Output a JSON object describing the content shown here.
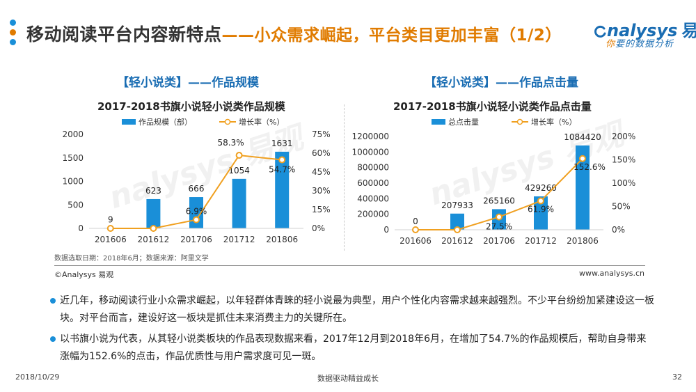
{
  "header": {
    "title_main": "移动阅读平台内容新特点",
    "title_sub": "——小众需求崛起，平台类目更加丰富（1/2）",
    "logo_brand": "nalysys",
    "logo_zh": "易观",
    "logo_tagline_hl": "你",
    "logo_tagline": "要的数据分析",
    "dot_colors": [
      "#1a8fd8",
      "#e07b00",
      "#1a8fd8"
    ]
  },
  "left": {
    "section_title": "【轻小说类】——作品规模",
    "chart_title": "2017-2018书旗小说轻小说类作品规模"
  },
  "right": {
    "section_title": "【轻小说类】——作品点击量",
    "chart_title": "2017-2018书旗小说轻小说类作品点击量"
  },
  "chart_data": [
    {
      "type": "bar",
      "title": "2017-2018书旗小说轻小说类作品规模",
      "categories": [
        "201606",
        "201612",
        "201706",
        "201712",
        "201806"
      ],
      "series": [
        {
          "name": "作品规模（部）",
          "kind": "bar",
          "axis": "left",
          "values": [
            9,
            623,
            666,
            1054,
            1631
          ],
          "color": "#1a8fd8"
        },
        {
          "name": "增长率（%）",
          "kind": "line",
          "axis": "right",
          "values": [
            0,
            0,
            6.9,
            58.3,
            54.7
          ],
          "labels": [
            "",
            "",
            "6.9%",
            "58.3%",
            "54.7%"
          ],
          "color": "#f0a020"
        }
      ],
      "ylim": [
        0,
        2000
      ],
      "yticks": [
        "0",
        "500",
        "1000",
        "1500",
        "2000"
      ],
      "y2lim": [
        0,
        75
      ],
      "y2ticks": [
        "0%",
        "15%",
        "30%",
        "45%",
        "60%",
        "75%"
      ],
      "legend": "top",
      "grid": false
    },
    {
      "type": "bar",
      "title": "2017-2018书旗小说轻小说类作品点击量",
      "categories": [
        "201606",
        "201612",
        "201706",
        "201712",
        "201806"
      ],
      "series": [
        {
          "name": "总点击量",
          "kind": "bar",
          "axis": "left",
          "values": [
            0,
            207933,
            265160,
            429260,
            1084420
          ],
          "color": "#1a8fd8"
        },
        {
          "name": "增长率（%）",
          "kind": "line",
          "axis": "right",
          "values": [
            0,
            0,
            27.5,
            61.9,
            152.6
          ],
          "labels": [
            "",
            "",
            "27.5%",
            "61.9%",
            "152.6%"
          ],
          "color": "#f0a020"
        }
      ],
      "ylim": [
        0,
        1200000
      ],
      "yticks": [
        "0",
        "200000",
        "400000",
        "600000",
        "800000",
        "1000000",
        "1200000"
      ],
      "y2lim": [
        0,
        200
      ],
      "y2ticks": [
        "0%",
        "50%",
        "100%",
        "150%",
        "200%"
      ],
      "legend": "top",
      "grid": false
    }
  ],
  "footer": {
    "note": "数据选取日期：2018年6月；数据来源：阿里文学",
    "copyright": "©Analysys 易观",
    "website": "www.analysys.cn"
  },
  "bullets": [
    "近几年，移动阅读行业小众需求崛起，以年轻群体青睐的轻小说最为典型，用户个性化内容需求越来越强烈。不少平台纷纷加紧建设这一板块。对平台而言，建设好这一板块是抓住未来消费主力的关键所在。",
    "以书旗小说为代表，从其轻小说类板块的作品表现数据来看，2017年12月到2018年6月，在增加了54.7%的作品规模后，帮助自身带来涨幅为152.6%的点击，作品优质性与用户需求度可见一斑。"
  ],
  "page": {
    "date": "2018/10/29",
    "slogan": "数据驱动精益成长",
    "number": "32"
  },
  "watermark": "nalysys 易观"
}
